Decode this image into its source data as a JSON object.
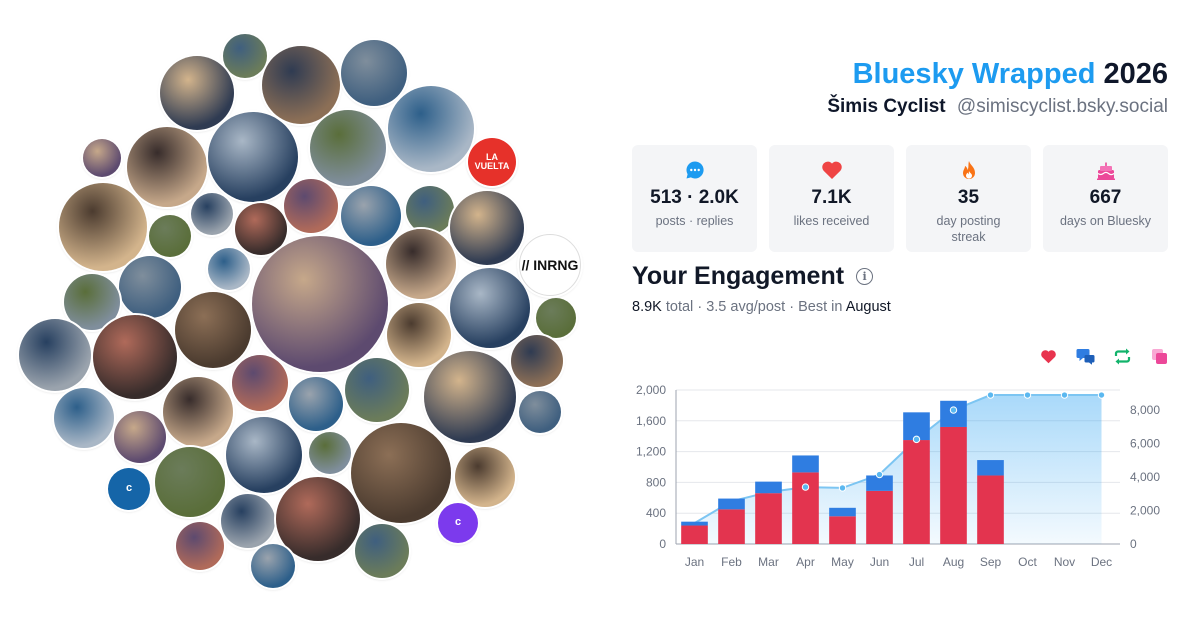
{
  "header": {
    "brand": "Bluesky Wrapped",
    "year": "2026",
    "display_name": "Šimis Cyclist",
    "handle": "@simiscyclist.bsky.social"
  },
  "stats": [
    {
      "value": "513 · 2.0K",
      "label": "posts · replies",
      "icon": "chat-bubble-icon",
      "color": "#1d9bf0"
    },
    {
      "value": "7.1K",
      "label": "likes received",
      "icon": "heart-icon",
      "color": "#ef4444"
    },
    {
      "value": "35",
      "label": "day posting streak",
      "icon": "flame-icon",
      "color": "#f97316"
    },
    {
      "value": "667",
      "label": "days on Bluesky",
      "icon": "cake-icon",
      "color": "#ec4899"
    }
  ],
  "engagement": {
    "title": "Your Engagement",
    "total": "8.9K",
    "total_word": "total",
    "avg": "3.5 avg/post",
    "best_prefix": "Best in",
    "best_month": "August",
    "sep": "·"
  },
  "legend": [
    {
      "icon": "heart-icon",
      "color": "#e8344e"
    },
    {
      "icon": "reply-icon",
      "color": "#2f7de1"
    },
    {
      "icon": "repost-icon",
      "color": "#12b36b"
    },
    {
      "icon": "quote-icon",
      "color": "#ec4899"
    }
  ],
  "avatars": {
    "letters": [
      {
        "text": "c",
        "color": "#1565a8"
      },
      {
        "text": "c",
        "color": "#7c3aed"
      }
    ],
    "logo_labels": [
      "LA VUELTA",
      "// INRNG"
    ],
    "photo_count": 55
  },
  "chart_data": {
    "type": "bar",
    "categories": [
      "Jan",
      "Feb",
      "Mar",
      "Apr",
      "May",
      "Jun",
      "Jul",
      "Aug",
      "Sep",
      "Oct",
      "Nov",
      "Dec"
    ],
    "series": [
      {
        "values": [
          240,
          450,
          660,
          930,
          360,
          690,
          1350,
          1520,
          890,
          0,
          0,
          0
        ],
        "color": "#e3344f"
      },
      {
        "values": [
          50,
          140,
          150,
          220,
          110,
          200,
          360,
          340,
          200,
          0,
          0,
          0
        ],
        "color": "#2f7de1"
      },
      {
        "values": [
          1250,
          2550,
          3100,
          3400,
          3350,
          4150,
          6250,
          8000,
          8900,
          8900,
          8900,
          8900
        ],
        "color": "#1d9bf0",
        "type": "area",
        "axis": "right"
      }
    ],
    "y_left": {
      "min": 0,
      "max": 2000,
      "ticks": [
        0,
        400,
        800,
        1200,
        1600,
        2000
      ],
      "tick_labels": [
        "0",
        "400",
        "800",
        "1,200",
        "1,600",
        "2,000"
      ]
    },
    "y_right": {
      "min": 0,
      "max": 9200,
      "ticks": [
        0,
        2000,
        4000,
        6000,
        8000
      ],
      "tick_labels": [
        "0",
        "2,000",
        "4,000",
        "6,000",
        "8,000"
      ]
    },
    "grid": true
  }
}
